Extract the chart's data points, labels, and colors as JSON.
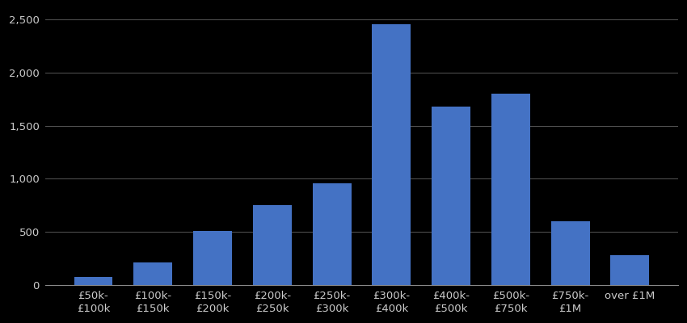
{
  "categories": [
    "£50k-\n£100k",
    "£100k-\n£150k",
    "£150k-\n£200k",
    "£200k-\n£250k",
    "£250k-\n£300k",
    "£300k-\n£400k",
    "£400k-\n£500k",
    "£500k-\n£750k",
    "£750k-\n£1M",
    "over £1M"
  ],
  "values": [
    75,
    210,
    510,
    750,
    960,
    2460,
    1680,
    1800,
    600,
    280
  ],
  "bar_color": "#4472C4",
  "background_color": "#000000",
  "text_color": "#cccccc",
  "grid_color": "#555555",
  "axis_line_color": "#888888",
  "ylim": [
    0,
    2600
  ],
  "yticks": [
    0,
    500,
    1000,
    1500,
    2000,
    2500
  ],
  "tick_fontsize": 9.5,
  "bar_width": 0.65
}
